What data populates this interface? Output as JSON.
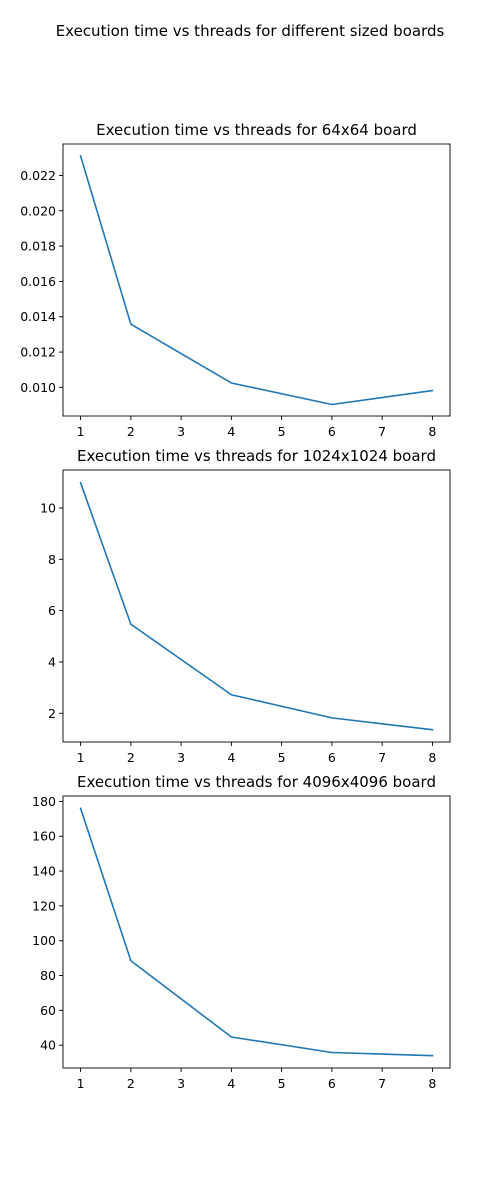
{
  "suptitle": "Execution time vs threads for different sized boards",
  "line_color": "#1f77b4",
  "chart_data": [
    {
      "type": "line",
      "title": "Execution time vs threads for 64x64 board",
      "xlabel": "",
      "ylabel": "",
      "x": [
        1,
        2,
        4,
        6,
        8
      ],
      "series": [
        {
          "values": [
            0.0231,
            0.01358,
            0.01025,
            0.00903,
            0.00982
          ]
        }
      ],
      "xlim": [
        0.65,
        8.35
      ],
      "ylim": [
        0.00838,
        0.02378
      ],
      "xticks": [
        1,
        2,
        3,
        4,
        5,
        6,
        7,
        8
      ],
      "xtick_labels": [
        "1",
        "2",
        "3",
        "4",
        "5",
        "6",
        "7",
        "8"
      ],
      "yticks": [
        0.01,
        0.012,
        0.014,
        0.016,
        0.018,
        0.02,
        0.022
      ],
      "ytick_labels": [
        "0.010",
        "0.012",
        "0.014",
        "0.016",
        "0.018",
        "0.020",
        "0.022"
      ],
      "grid": false
    },
    {
      "type": "line",
      "title": "Execution time vs threads for 1024x1024 board",
      "xlabel": "",
      "ylabel": "",
      "x": [
        1,
        2,
        4,
        6,
        8
      ],
      "series": [
        {
          "values": [
            10.98,
            5.47,
            2.72,
            1.82,
            1.36
          ]
        }
      ],
      "xlim": [
        0.65,
        8.35
      ],
      "ylim": [
        0.88,
        11.48
      ],
      "xticks": [
        1,
        2,
        3,
        4,
        5,
        6,
        7,
        8
      ],
      "xtick_labels": [
        "1",
        "2",
        "3",
        "4",
        "5",
        "6",
        "7",
        "8"
      ],
      "yticks": [
        2,
        4,
        6,
        8,
        10
      ],
      "ytick_labels": [
        "2",
        "4",
        "6",
        "8",
        "10"
      ],
      "grid": false
    },
    {
      "type": "line",
      "title": "Execution time vs threads for 4096x4096 board",
      "xlabel": "",
      "ylabel": "",
      "x": [
        1,
        2,
        4,
        6,
        8
      ],
      "series": [
        {
          "values": [
            176.0,
            88.5,
            44.7,
            35.8,
            34.0
          ]
        }
      ],
      "xlim": [
        0.65,
        8.35
      ],
      "ylim": [
        26.9,
        183.1
      ],
      "xticks": [
        1,
        2,
        3,
        4,
        5,
        6,
        7,
        8
      ],
      "xtick_labels": [
        "1",
        "2",
        "3",
        "4",
        "5",
        "6",
        "7",
        "8"
      ],
      "yticks": [
        40,
        60,
        80,
        100,
        120,
        140,
        160,
        180
      ],
      "ytick_labels": [
        "40",
        "60",
        "80",
        "100",
        "120",
        "140",
        "160",
        "180"
      ],
      "grid": false
    }
  ]
}
